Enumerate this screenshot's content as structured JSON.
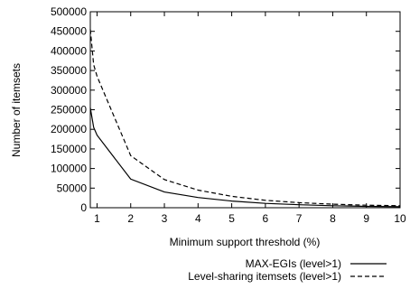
{
  "chart_data": {
    "type": "line",
    "title": "",
    "xlabel": "Minimum support threshold (%)",
    "ylabel": "Number of itemsets",
    "xlim": [
      0.8,
      10
    ],
    "ylim": [
      0,
      500000
    ],
    "x_ticks": [
      1,
      2,
      3,
      4,
      5,
      6,
      7,
      8,
      9,
      10
    ],
    "x_tick_labels": [
      "1",
      "2",
      "3",
      "4",
      "5",
      "6",
      "7",
      "8",
      "9",
      "10"
    ],
    "y_ticks": [
      0,
      50000,
      100000,
      150000,
      200000,
      250000,
      300000,
      350000,
      400000,
      450000,
      500000
    ],
    "y_tick_labels": [
      "0",
      "50000",
      "100000",
      "150000",
      "200000",
      "250000",
      "300000",
      "350000",
      "400000",
      "450000",
      "500000"
    ],
    "grid": false,
    "legend_position": "bottom-right, below plot",
    "series": [
      {
        "name": "MAX-EGIs (level>1)",
        "style": "solid",
        "color": "#000000",
        "x": [
          0.8,
          0.9,
          1,
          2,
          3,
          4,
          5,
          6,
          7,
          8,
          9,
          10
        ],
        "y": [
          255000,
          205000,
          185000,
          73000,
          40000,
          26000,
          17000,
          11000,
          7500,
          5000,
          3500,
          2500
        ]
      },
      {
        "name": "Level-sharing itemsets (level>1)",
        "style": "dashed",
        "color": "#000000",
        "x": [
          0.8,
          0.9,
          1,
          2,
          3,
          4,
          5,
          6,
          7,
          8,
          9,
          10
        ],
        "y": [
          455000,
          365000,
          335000,
          133000,
          72000,
          45000,
          29000,
          19000,
          13000,
          9000,
          6500,
          5000
        ]
      }
    ]
  }
}
